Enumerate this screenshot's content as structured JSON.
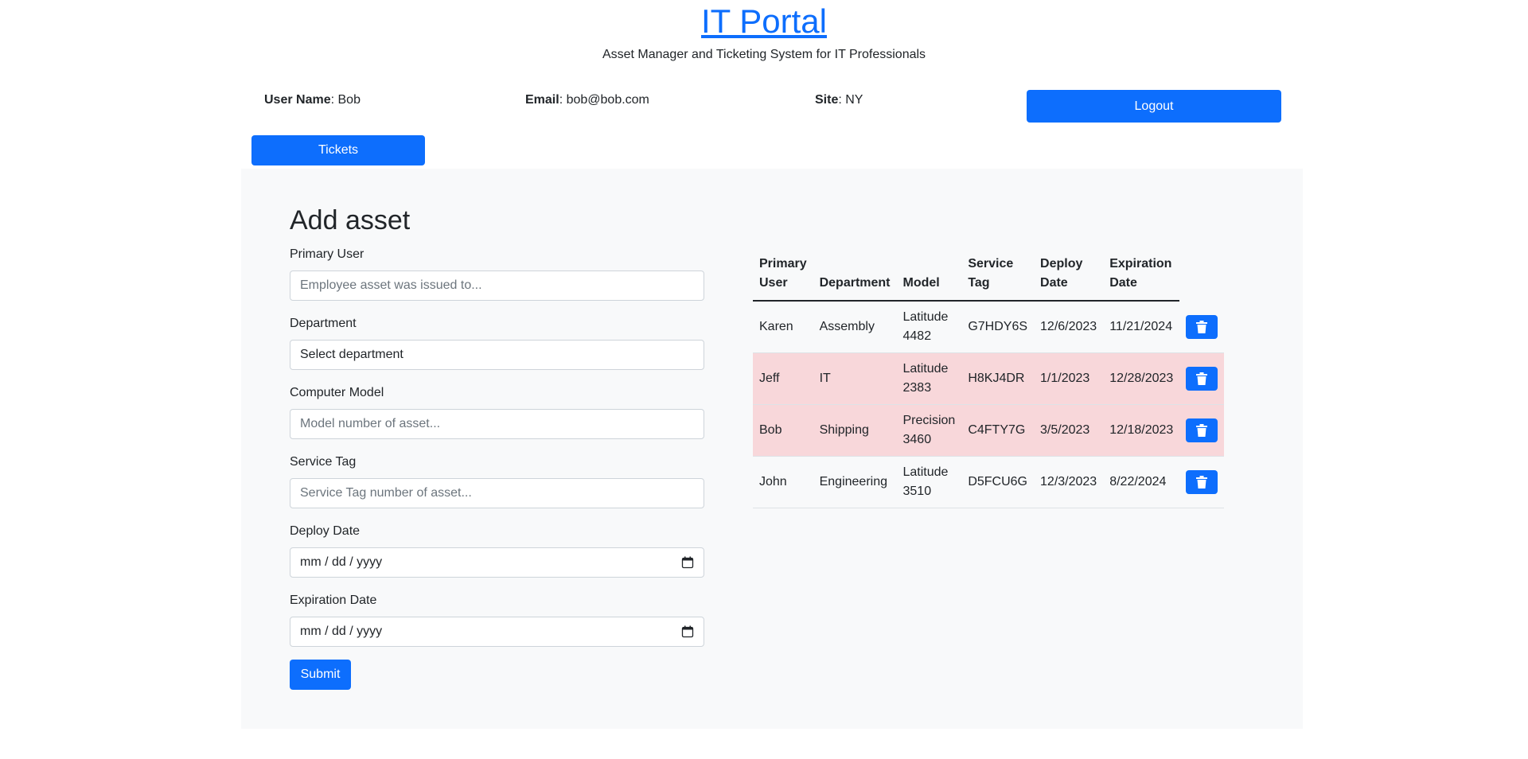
{
  "header": {
    "title": "IT Portal",
    "subtitle": "Asset Manager and Ticketing System for IT Professionals"
  },
  "user_info": {
    "username_label": "User Name",
    "username_value": ": Bob",
    "email_label": "Email",
    "email_value": ": bob@bob.com",
    "site_label": "Site",
    "site_value": ": NY"
  },
  "buttons": {
    "logout": "Logout",
    "tickets": "Tickets",
    "submit": "Submit"
  },
  "form": {
    "title": "Add asset",
    "primary_user_label": "Primary User",
    "primary_user_placeholder": "Employee asset was issued to...",
    "department_label": "Department",
    "department_value": "Select department",
    "model_label": "Computer Model",
    "model_placeholder": "Model number of asset...",
    "service_tag_label": "Service Tag",
    "service_tag_placeholder": "Service Tag number of asset...",
    "deploy_label": "Deploy Date",
    "deploy_value": "mm / dd / yyyy",
    "expiration_label": "Expiration Date",
    "expiration_value": "mm / dd / yyyy"
  },
  "table": {
    "headers": {
      "primary_user": [
        "Primary",
        "User"
      ],
      "department": "Department",
      "model": "Model",
      "service_tag": [
        "Service",
        "Tag"
      ],
      "deploy_date": [
        "Deploy",
        "Date"
      ],
      "expiration_date": [
        "Expiration",
        "Date"
      ]
    },
    "rows": [
      {
        "user": "Karen",
        "dept": "Assembly",
        "model": [
          "Latitude",
          "4482"
        ],
        "tag": "G7HDY6S",
        "deploy": "12/6/2023",
        "expire": "11/21/2024"
      },
      {
        "user": "Jeff",
        "dept": "IT",
        "model": [
          "Latitude",
          "2383"
        ],
        "tag": "H8KJ4DR",
        "deploy": "1/1/2023",
        "expire": "12/28/2023"
      },
      {
        "user": "Bob",
        "dept": "Shipping",
        "model": [
          "Precision",
          "3460"
        ],
        "tag": "C4FTY7G",
        "deploy": "3/5/2023",
        "expire": "12/18/2023"
      },
      {
        "user": "John",
        "dept": "Engineering",
        "model": [
          "Latitude",
          "3510"
        ],
        "tag": "D5FCU6G",
        "deploy": "12/3/2023",
        "expire": "8/22/2024"
      }
    ]
  },
  "colors": {
    "primary": "#0d6efd",
    "panel_bg": "#f8f9fa",
    "expired_row_bg": "#f8d7da"
  },
  "icons": {
    "row_delete": "trash-icon",
    "date_picker": "calendar-icon"
  }
}
